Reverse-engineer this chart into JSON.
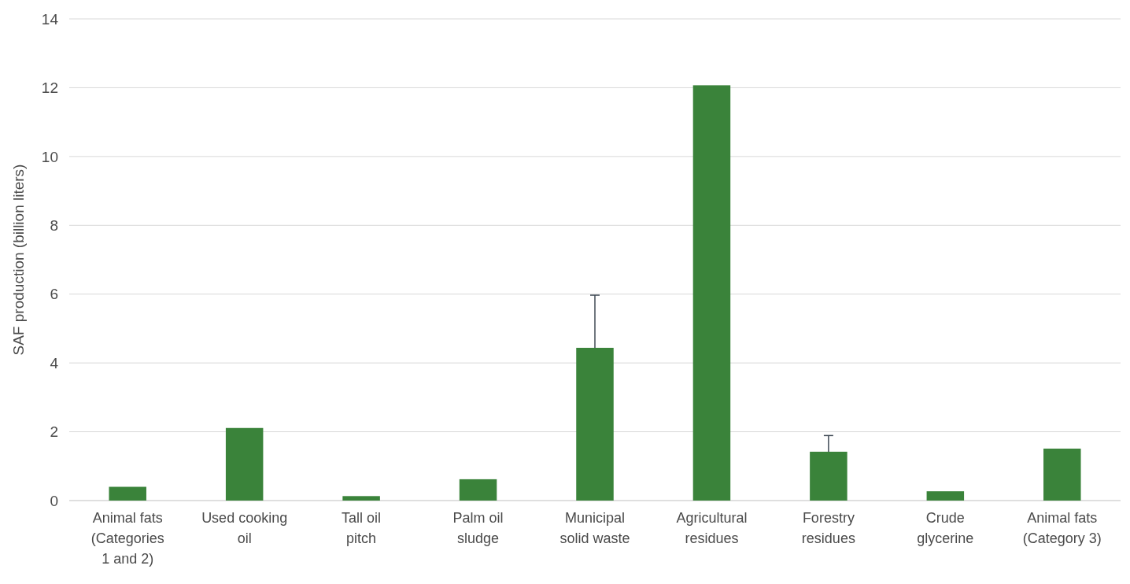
{
  "chart_data": {
    "type": "bar",
    "ylabel": "SAF production (billion liters)",
    "categories": [
      "Animal fats (Categories 1 and 2)",
      "Used cooking oil",
      "Tall oil pitch",
      "Palm oil sludge",
      "Municipal solid waste",
      "Agricultural residues",
      "Forestry residues",
      "Crude glycerine",
      "Animal fats (Category 3)"
    ],
    "values": [
      0.4,
      2.11,
      0.13,
      0.62,
      4.44,
      12.07,
      1.42,
      0.27,
      1.51
    ],
    "errors": [
      null,
      null,
      null,
      null,
      [
        4.44,
        5.97
      ],
      null,
      [
        1.42,
        1.89
      ],
      null,
      null
    ],
    "color": "#3a833a",
    "ylim": [
      0,
      14
    ],
    "yticks": [
      0,
      2,
      4,
      6,
      8,
      10,
      12,
      14
    ],
    "grid": "y"
  }
}
